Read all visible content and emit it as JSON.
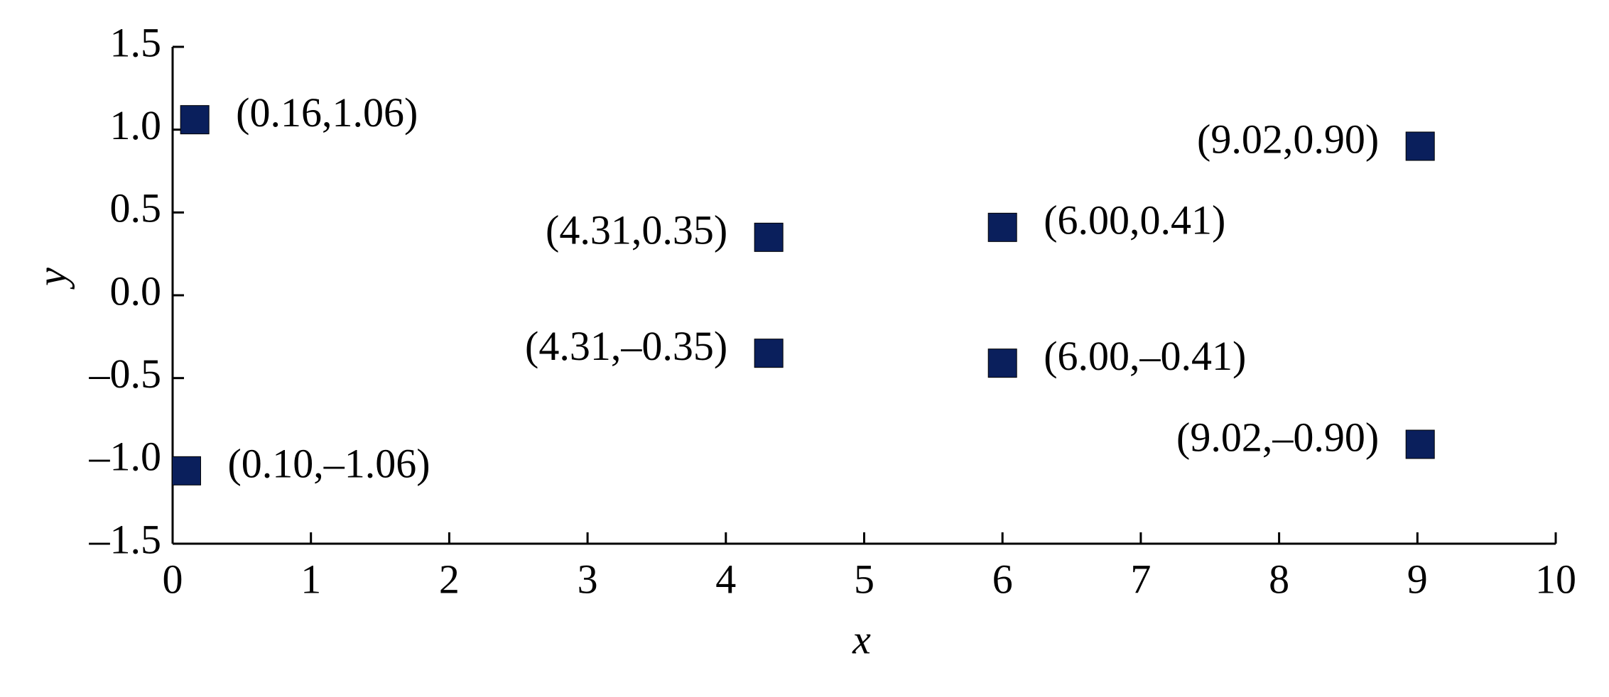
{
  "chart_data": {
    "type": "scatter",
    "x_label": "x",
    "y_label": "y",
    "x": [
      0.16,
      0.1,
      4.31,
      4.31,
      6.0,
      6.0,
      9.02,
      9.02
    ],
    "values": [
      1.06,
      -1.06,
      0.35,
      -0.35,
      0.41,
      -0.41,
      0.9,
      -0.9
    ],
    "value_labels": [
      "(0.16,1.06)",
      "(0.10,–1.06)",
      "(4.31,0.35)",
      "(4.31,–0.35)",
      "(6.00,0.41)",
      "(6.00,–0.41)",
      "(9.02,0.90)",
      "(9.02,–0.90)"
    ],
    "color": "#0a1f5c",
    "xlim": [
      0,
      10
    ],
    "ylim": [
      -1.5,
      1.5
    ],
    "xticks": [
      0,
      1,
      2,
      3,
      4,
      5,
      6,
      7,
      8,
      9,
      10
    ],
    "yticks": [
      1.5,
      {
        "value": 1,
        "label": "1.0"
      },
      0.5,
      {
        "value": 0,
        "label": "0.0"
      },
      {
        "value": -0.5,
        "label": "–0.5"
      },
      {
        "value": -1,
        "label": "–1.0"
      },
      {
        "value": -1.5,
        "label": "–1.5"
      }
    ]
  }
}
